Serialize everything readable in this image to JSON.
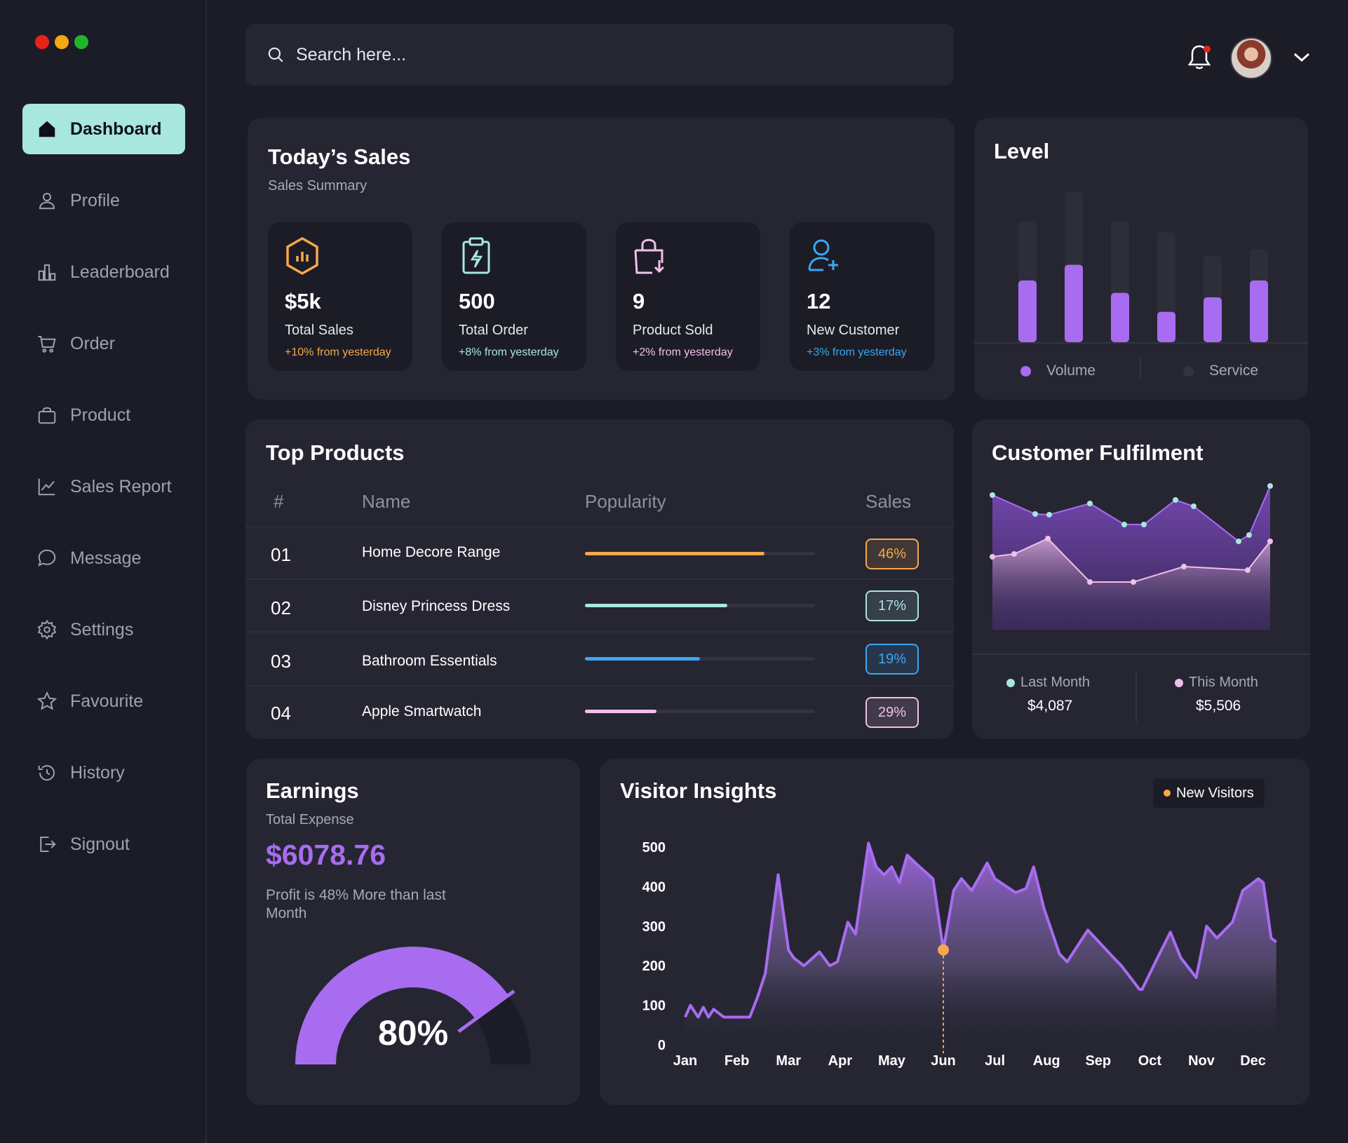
{
  "search": {
    "placeholder": "Search here..."
  },
  "sidebar": {
    "items": [
      {
        "label": "Dashboard",
        "icon": "home-icon"
      },
      {
        "label": "Profile",
        "icon": "user-icon"
      },
      {
        "label": "Leaderboard",
        "icon": "leaderboard-icon"
      },
      {
        "label": "Order",
        "icon": "cart-icon"
      },
      {
        "label": "Product",
        "icon": "bag-icon"
      },
      {
        "label": "Sales Report",
        "icon": "line-chart-icon"
      },
      {
        "label": "Message",
        "icon": "message-icon"
      },
      {
        "label": "Settings",
        "icon": "gear-icon"
      },
      {
        "label": "Favourite",
        "icon": "star-icon"
      },
      {
        "label": "History",
        "icon": "history-icon"
      },
      {
        "label": "Signout",
        "icon": "signout-icon"
      }
    ]
  },
  "todays_sales": {
    "title": "Today’s Sales",
    "subtitle": "Sales Summary",
    "kpis": [
      {
        "value": "$5k",
        "label": "Total Sales",
        "change": "+10% from yesterday",
        "color": "#f5a94a"
      },
      {
        "value": "500",
        "label": "Total Order",
        "change": "+8% from yesterday",
        "color": "#a8e6e0"
      },
      {
        "value": "9",
        "label": "Product Sold",
        "change": "+2% from yesterday",
        "color": "#f0c0e8"
      },
      {
        "value": "12",
        "label": "New Customer",
        "change": "+3% from yesterday",
        "color": "#3aa8f0"
      }
    ]
  },
  "level": {
    "title": "Level",
    "legend": [
      "Volume",
      "Service"
    ],
    "volume": [
      55,
      69,
      44,
      27,
      40,
      55
    ],
    "total": [
      108,
      134,
      108,
      98,
      77,
      83
    ]
  },
  "top_products": {
    "title": "Top Products",
    "headers": [
      "#",
      "Name",
      "Popularity",
      "Sales"
    ],
    "rows": [
      {
        "num": "01",
        "name": "Home Decore Range",
        "popularity": 0.78,
        "sales": "46%",
        "color": "#f5a94a"
      },
      {
        "num": "02",
        "name": "Disney Princess Dress",
        "popularity": 0.62,
        "sales": "17%",
        "color": "#a8e6e0"
      },
      {
        "num": "03",
        "name": "Bathroom Essentials",
        "popularity": 0.5,
        "sales": "19%",
        "color": "#3aa8f0"
      },
      {
        "num": "04",
        "name": "Apple Smartwatch",
        "popularity": 0.31,
        "sales": "29%",
        "color": "#f0c0e8"
      }
    ]
  },
  "fulfilment": {
    "title": "Customer Fulfilment",
    "last_label": "Last Month",
    "last_value": "$4,087",
    "this_label": "This Month",
    "this_value": "$5,506",
    "last_color": "#a8e6e0",
    "this_color": "#f0c0e8"
  },
  "earnings": {
    "title": "Earnings",
    "subtitle": "Total Expense",
    "amount": "$6078.76",
    "note_line1": "Profit is 48% More than last",
    "note_line2": "Month",
    "percent": 80,
    "percent_label": "80%"
  },
  "visitors": {
    "title": "Visitor Insights",
    "legend": "New Visitors",
    "chart_data": {
      "type": "area",
      "title": "Visitor Insights",
      "categories": [
        "Jan",
        "Feb",
        "Mar",
        "Apr",
        "May",
        "Jun",
        "Jul",
        "Aug",
        "Sep",
        "Oct",
        "Nov",
        "Dec"
      ],
      "y_ticks": [
        "500",
        "400",
        "300",
        "200",
        "100",
        "0"
      ],
      "ylim": [
        0,
        500
      ],
      "highlight_month": "Jun",
      "series": [
        {
          "name": "New Visitors",
          "color": "#a86cf0",
          "x": [
            0,
            0.1,
            0.25,
            0.35,
            0.45,
            0.55,
            0.65,
            0.75,
            0.95,
            1.25,
            1.4,
            1.55,
            1.8,
            2.0,
            2.1,
            2.3,
            2.6,
            2.8,
            2.95,
            3.15,
            3.3,
            3.55,
            3.7,
            3.85,
            4.0,
            4.15,
            4.3,
            4.5,
            4.8,
            5.0,
            5.2,
            5.35,
            5.55,
            5.85,
            6.0,
            6.4,
            6.6,
            6.75,
            6.95,
            7.25,
            7.4,
            7.8,
            8.3,
            8.45,
            8.8,
            8.85,
            9.15,
            9.4,
            9.6,
            9.9,
            10.1,
            10.3,
            10.6,
            10.8,
            11.1,
            11.2,
            11.35,
            11.45
          ],
          "y": [
            70,
            100,
            70,
            95,
            70,
            90,
            80,
            70,
            70,
            70,
            120,
            180,
            430,
            240,
            220,
            200,
            235,
            200,
            210,
            310,
            280,
            510,
            450,
            430,
            450,
            410,
            480,
            455,
            420,
            240,
            390,
            420,
            390,
            460,
            420,
            385,
            395,
            450,
            345,
            230,
            210,
            290,
            220,
            200,
            140,
            140,
            220,
            285,
            220,
            170,
            300,
            270,
            310,
            390,
            420,
            410,
            270,
            260
          ]
        }
      ]
    }
  }
}
